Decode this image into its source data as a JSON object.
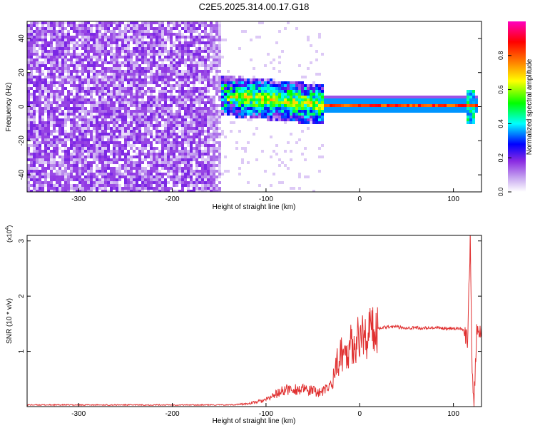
{
  "title": "C2E5.2025.314.00.17.G18",
  "chart_data": [
    {
      "type": "heatmap",
      "xlabel": "Height of straight line (km)",
      "ylabel": "Frequency (Hz)",
      "xlim": [
        -355,
        130
      ],
      "ylim": [
        -50,
        50
      ],
      "xticks": [
        -300,
        -200,
        -100,
        0,
        100
      ],
      "yticks": [
        -40,
        -20,
        0,
        20,
        40
      ],
      "colorbar": {
        "label": "Normalized spectral amplitude",
        "range": [
          0,
          1
        ],
        "ticks": [
          "0.0",
          "0.2",
          "0.4",
          "0.6",
          "0.8"
        ],
        "colors": [
          "#ffffff",
          "#8a2be2",
          "#0000ff",
          "#00ffff",
          "#00ff00",
          "#ffff00",
          "#ff7f00",
          "#ff0000",
          "#ff00ff"
        ]
      },
      "regions": [
        {
          "x": [
            -355,
            -150
          ],
          "level": 0.15,
          "description": "noise"
        },
        {
          "x": [
            -150,
            -40
          ],
          "freq_center": 5,
          "level": 0.45
        },
        {
          "x": [
            -40,
            125
          ],
          "freq_center": 1.5,
          "level": 0.9
        }
      ]
    },
    {
      "type": "line",
      "xlabel": "Height of straight line (km)",
      "ylabel": "SNR (10 * v/v)",
      "y_multiplier": "(x10",
      "y_multiplier_exp": "4",
      "y_multiplier_close": ")",
      "xlim": [
        -355,
        130
      ],
      "ylim": [
        0,
        3.1
      ],
      "xticks": [
        -300,
        -200,
        -100,
        0,
        100
      ],
      "yticks": [
        1,
        2,
        3
      ],
      "color": "#e03030",
      "series": [
        {
          "x": [
            -355,
            -300,
            -200,
            -140,
            -120,
            -100,
            -90,
            -80,
            -70,
            -60,
            -50,
            -40,
            -30,
            -25,
            -20,
            -15,
            -10,
            0,
            10,
            20,
            30,
            50,
            70,
            90,
            100,
            110,
            115,
            118,
            120,
            122,
            125,
            130
          ],
          "y": [
            0.03,
            0.03,
            0.03,
            0.03,
            0.05,
            0.12,
            0.22,
            0.3,
            0.32,
            0.3,
            0.28,
            0.26,
            0.4,
            0.75,
            0.95,
            1.0,
            1.1,
            1.25,
            1.35,
            1.42,
            1.45,
            1.43,
            1.42,
            1.42,
            1.42,
            1.4,
            1.2,
            3.05,
            0.6,
            0.1,
            1.35,
            1.35
          ]
        }
      ]
    }
  ]
}
